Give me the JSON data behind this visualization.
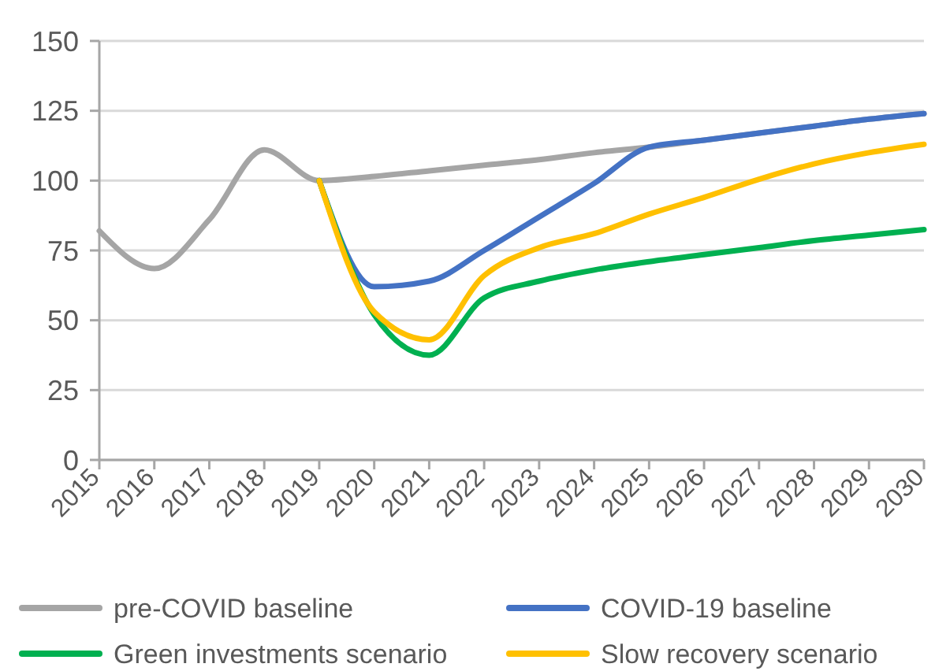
{
  "chart_data": {
    "type": "line",
    "x": [
      2015,
      2016,
      2017,
      2018,
      2019,
      2020,
      2021,
      2022,
      2023,
      2024,
      2025,
      2026,
      2027,
      2028,
      2029,
      2030
    ],
    "series": [
      {
        "name": "pre-COVID baseline",
        "color": "#a5a5a5",
        "values": [
          82,
          68.5,
          86,
          111,
          100,
          101.5,
          103.5,
          105.5,
          107.5,
          110,
          112,
          114.5,
          117,
          119.5,
          122,
          124
        ]
      },
      {
        "name": "COVID-19 baseline",
        "color": "#4472c4",
        "values": [
          null,
          null,
          null,
          null,
          100,
          62,
          64,
          75,
          87,
          99,
          112,
          114.5,
          117,
          119.5,
          122,
          124
        ]
      },
      {
        "name": "Green investments scenario",
        "color": "#00b050",
        "values": [
          null,
          null,
          null,
          null,
          100,
          52,
          37.5,
          58,
          64,
          68,
          71,
          73.5,
          76,
          78.5,
          80.5,
          82.5
        ]
      },
      {
        "name": "Slow recovery scenario",
        "color": "#ffc000",
        "values": [
          null,
          null,
          null,
          null,
          100,
          53,
          43,
          66,
          76,
          81,
          88,
          94,
          100.5,
          106,
          110,
          113
        ]
      }
    ],
    "xlim": [
      2015,
      2030
    ],
    "xticks": [
      2015,
      2016,
      2017,
      2018,
      2019,
      2020,
      2021,
      2022,
      2023,
      2024,
      2025,
      2026,
      2027,
      2028,
      2029,
      2030
    ],
    "ylim": [
      0,
      150
    ],
    "yticks": [
      0,
      25,
      50,
      75,
      100,
      125,
      150
    ],
    "grid": "y",
    "legend": "bottom"
  }
}
